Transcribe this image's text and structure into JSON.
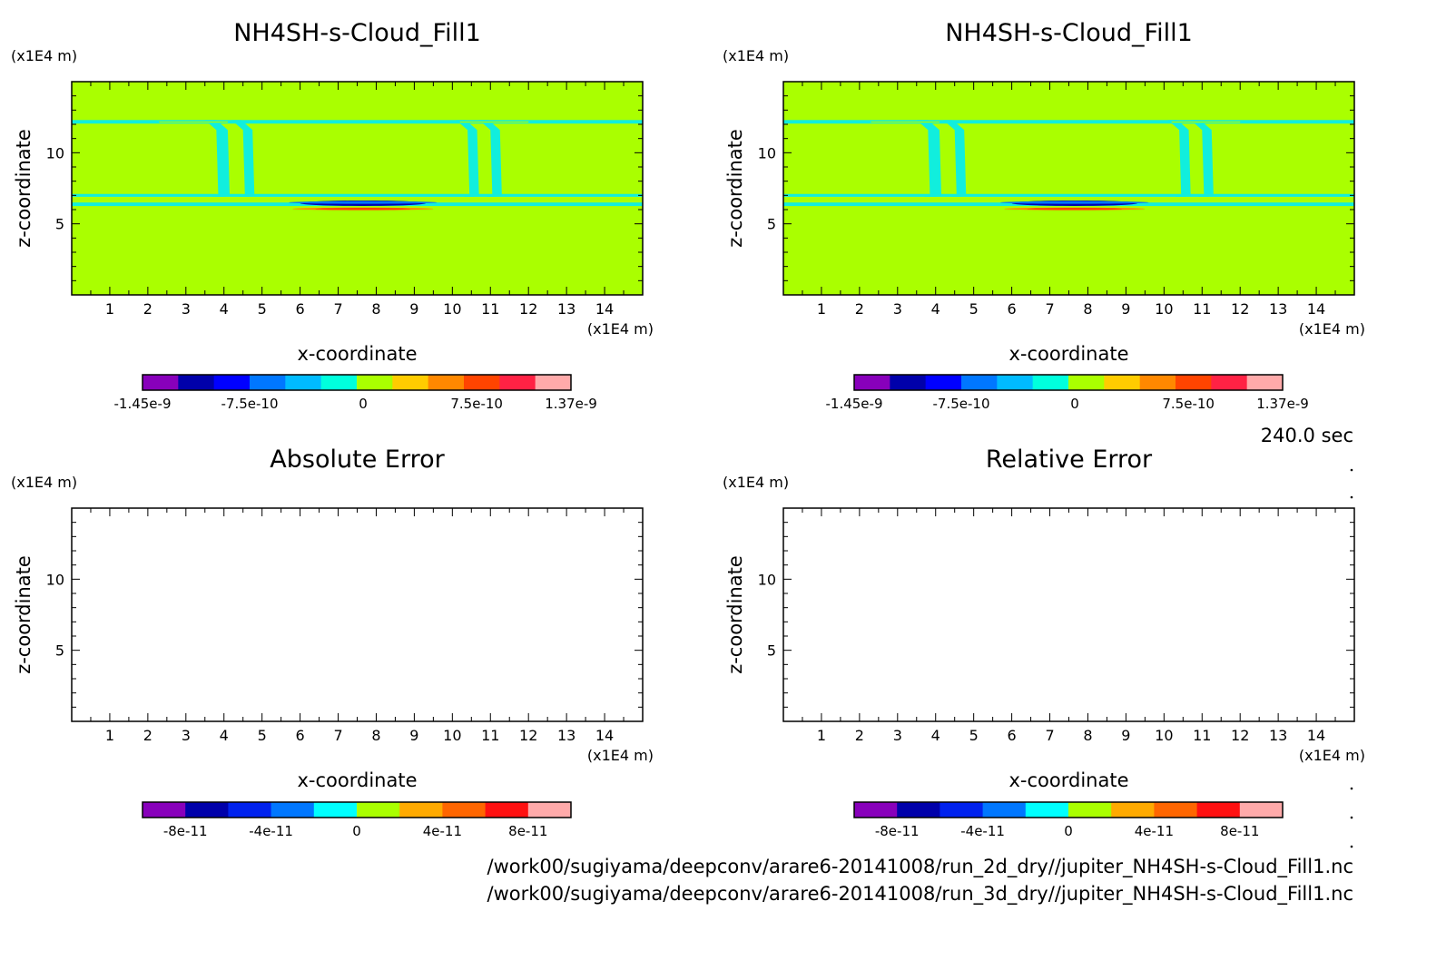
{
  "time_label": "240.0 sec",
  "footer": {
    "file1": "/work00/sugiyama/deepconv/arare6-20141008/run_2d_dry//jupiter_NH4SH-s-Cloud_Fill1.nc",
    "file2": "/work00/sugiyama/deepconv/arare6-20141008/run_3d_dry//jupiter_NH4SH-s-Cloud_Fill1.nc"
  },
  "chart_data": [
    {
      "type": "heatmap",
      "title": "NH4SH-s-Cloud_Fill1",
      "xlabel": "x-coordinate",
      "ylabel": "z-coordinate",
      "x_unit": "(x1E4 m)",
      "y_unit": "(x1E4 m)",
      "xlim": [
        0,
        15
      ],
      "ylim": [
        0,
        15
      ],
      "x_ticks": [
        1,
        2,
        3,
        4,
        5,
        6,
        7,
        8,
        9,
        10,
        11,
        12,
        13,
        14
      ],
      "y_ticks": [
        5,
        10
      ],
      "background": "#aaff00",
      "colorbar": {
        "colors": [
          "#8800bb",
          "#0000aa",
          "#0000ff",
          "#0077ff",
          "#00bbff",
          "#00ffdd",
          "#aaff00",
          "#ffcc00",
          "#ff8800",
          "#ff4400",
          "#ff2244",
          "#ffaaaa"
        ],
        "labels": [
          "-1.45e-9",
          "-7.5e-10",
          "0",
          "7.5e-10",
          "1.37e-9"
        ]
      }
    },
    {
      "type": "heatmap",
      "title": "NH4SH-s-Cloud_Fill1",
      "xlabel": "x-coordinate",
      "ylabel": "z-coordinate",
      "x_unit": "(x1E4 m)",
      "y_unit": "(x1E4 m)",
      "xlim": [
        0,
        15
      ],
      "ylim": [
        0,
        15
      ],
      "x_ticks": [
        1,
        2,
        3,
        4,
        5,
        6,
        7,
        8,
        9,
        10,
        11,
        12,
        13,
        14
      ],
      "y_ticks": [
        5,
        10
      ],
      "background": "#aaff00",
      "colorbar": {
        "colors": [
          "#8800bb",
          "#0000aa",
          "#0000ff",
          "#0077ff",
          "#00bbff",
          "#00ffdd",
          "#aaff00",
          "#ffcc00",
          "#ff8800",
          "#ff4400",
          "#ff2244",
          "#ffaaaa"
        ],
        "labels": [
          "-1.45e-9",
          "-7.5e-10",
          "0",
          "7.5e-10",
          "1.37e-9"
        ]
      }
    },
    {
      "type": "heatmap",
      "title": "Absolute Error",
      "xlabel": "x-coordinate",
      "ylabel": "z-coordinate",
      "x_unit": "(x1E4 m)",
      "y_unit": "(x1E4 m)",
      "xlim": [
        0,
        15
      ],
      "ylim": [
        0,
        15
      ],
      "x_ticks": [
        1,
        2,
        3,
        4,
        5,
        6,
        7,
        8,
        9,
        10,
        11,
        12,
        13,
        14
      ],
      "y_ticks": [
        5,
        10
      ],
      "background": "#ffffff",
      "colorbar": {
        "colors": [
          "#8800bb",
          "#0000aa",
          "#0022ee",
          "#0077ff",
          "#00ffff",
          "#aaff00",
          "#ffaa00",
          "#ff6600",
          "#ff1111",
          "#ffaaaa"
        ],
        "labels": [
          "-8e-11",
          "-4e-11",
          "0",
          "4e-11",
          "8e-11"
        ]
      }
    },
    {
      "type": "heatmap",
      "title": "Relative Error",
      "xlabel": "x-coordinate",
      "ylabel": "z-coordinate",
      "x_unit": "(x1E4 m)",
      "y_unit": "(x1E4 m)",
      "xlim": [
        0,
        15
      ],
      "ylim": [
        0,
        15
      ],
      "x_ticks": [
        1,
        2,
        3,
        4,
        5,
        6,
        7,
        8,
        9,
        10,
        11,
        12,
        13,
        14
      ],
      "y_ticks": [
        5,
        10
      ],
      "background": "#ffffff",
      "colorbar": {
        "colors": [
          "#8800bb",
          "#0000aa",
          "#0022ee",
          "#0077ff",
          "#00ffff",
          "#aaff00",
          "#ffaa00",
          "#ff6600",
          "#ff1111",
          "#ffaaaa"
        ],
        "labels": [
          "-8e-11",
          "-4e-11",
          "0",
          "4e-11",
          "8e-11"
        ]
      }
    }
  ]
}
